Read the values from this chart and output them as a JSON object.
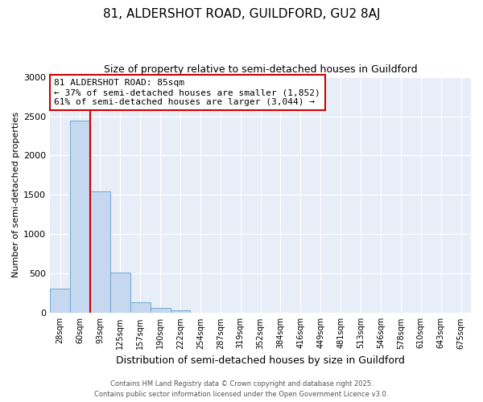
{
  "title1": "81, ALDERSHOT ROAD, GUILDFORD, GU2 8AJ",
  "title2": "Size of property relative to semi-detached houses in Guildford",
  "xlabel": "Distribution of semi-detached houses by size in Guildford",
  "ylabel": "Number of semi-detached properties",
  "bar_labels": [
    "28sqm",
    "60sqm",
    "93sqm",
    "125sqm",
    "157sqm",
    "190sqm",
    "222sqm",
    "254sqm",
    "287sqm",
    "319sqm",
    "352sqm",
    "384sqm",
    "416sqm",
    "449sqm",
    "481sqm",
    "513sqm",
    "546sqm",
    "578sqm",
    "610sqm",
    "643sqm",
    "675sqm"
  ],
  "bar_values": [
    305,
    2440,
    1550,
    510,
    140,
    65,
    30,
    0,
    0,
    0,
    0,
    0,
    0,
    0,
    0,
    0,
    0,
    0,
    0,
    0,
    0
  ],
  "bar_color": "#c5d8f0",
  "bar_edge_color": "#7bafd4",
  "annotation_title": "81 ALDERSHOT ROAD: 85sqm",
  "annotation_line1": "← 37% of semi-detached houses are smaller (1,852)",
  "annotation_line2": "61% of semi-detached houses are larger (3,044) →",
  "ylim": [
    0,
    3000
  ],
  "yticks": [
    0,
    500,
    1000,
    1500,
    2000,
    2500,
    3000
  ],
  "footer1": "Contains HM Land Registry data © Crown copyright and database right 2025.",
  "footer2": "Contains public sector information licensed under the Open Government Licence v3.0.",
  "background_color": "#ffffff",
  "plot_bg_color": "#e8eef8",
  "annotation_box_edge": "#cc0000",
  "red_line_color": "#cc0000",
  "grid_color": "#ffffff",
  "title1_fontsize": 11,
  "title2_fontsize": 9
}
